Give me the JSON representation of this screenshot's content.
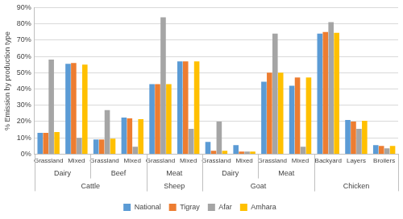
{
  "chart_data": {
    "type": "bar",
    "y_label": "% Emission by production type",
    "categories": [
      "Grassland",
      "Mixed",
      "Grassland",
      "Mixed",
      "Grassland",
      "Mixed",
      "Grassland",
      "Mixed",
      "Grassland",
      "Mixed",
      "Backyard",
      "Layers",
      "Broilers"
    ],
    "product_labels": [
      "Dairy",
      "Dairy",
      "Beef",
      "Beef",
      "Meat",
      "Meat",
      "Dairy",
      "Dairy",
      "Meat",
      "Meat",
      null,
      null,
      null
    ],
    "species_labels": [
      "Cattle",
      "Cattle",
      "Cattle",
      "Cattle",
      "Sheep",
      "Sheep",
      "Goat",
      "Goat",
      "Goat",
      "Goat",
      "Chicken",
      "Chicken",
      "Chicken"
    ],
    "series": [
      {
        "name": "National",
        "color": "#5b9bd5",
        "values": [
          13,
          55.5,
          9,
          22.5,
          43,
          57,
          7.5,
          5.5,
          44.5,
          42,
          74,
          21,
          5.5
        ]
      },
      {
        "name": "Tigray",
        "color": "#ed7d31",
        "values": [
          13,
          56,
          9,
          22,
          43,
          57,
          2,
          1.5,
          50,
          47,
          75,
          20,
          5
        ]
      },
      {
        "name": "Afar",
        "color": "#a5a5a5",
        "values": [
          58,
          10,
          27,
          4.5,
          84,
          15.5,
          20,
          1.5,
          74,
          4.5,
          81,
          15.5,
          3.5
        ]
      },
      {
        "name": "Amhara",
        "color": "#ffc000",
        "values": [
          13.5,
          55,
          9.5,
          21.5,
          43,
          57,
          2,
          1.5,
          50,
          47,
          74.5,
          20.5,
          5
        ]
      }
    ],
    "ylim": [
      0,
      90
    ],
    "yticks": [
      {
        "value": 0,
        "label": "0%"
      },
      {
        "value": 10,
        "label": "10%"
      },
      {
        "value": 20,
        "label": "20%"
      },
      {
        "value": 30,
        "label": "30%"
      },
      {
        "value": 40,
        "label": "40%"
      },
      {
        "value": 50,
        "label": "50%"
      },
      {
        "value": 60,
        "label": "60%"
      },
      {
        "value": 70,
        "label": "70%"
      },
      {
        "value": 80,
        "label": "80%"
      },
      {
        "value": 90,
        "label": "90%"
      }
    ],
    "grid": true,
    "legend": "bottom"
  }
}
